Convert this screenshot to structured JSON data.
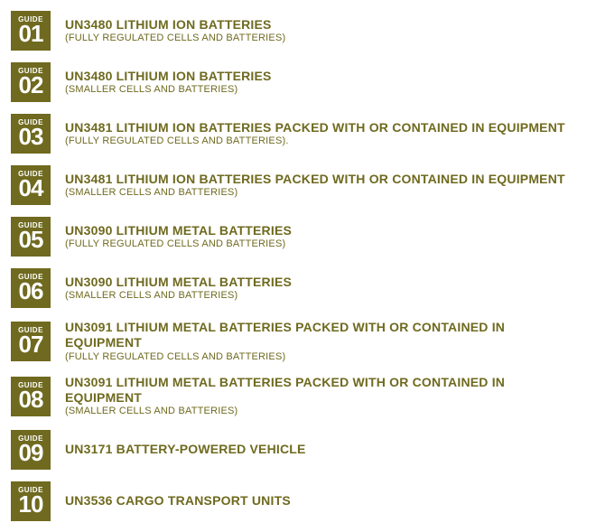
{
  "colors": {
    "badge_bg": "#6f6a1f",
    "badge_text": "#ffffff",
    "text": "#6f6a1f",
    "background": "#ffffff"
  },
  "badge_label": "GUIDE",
  "guides": [
    {
      "num": "01",
      "title": "UN3480 LITHIUM ION BATTERIES",
      "subtitle": "(FULLY REGULATED CELLS AND BATTERIES)"
    },
    {
      "num": "02",
      "title": "UN3480 LITHIUM ION BATTERIES",
      "subtitle": "(SMALLER CELLS AND BATTERIES)"
    },
    {
      "num": "03",
      "title": "UN3481 LITHIUM ION BATTERIES PACKED WITH OR CONTAINED IN EQUIPMENT",
      "subtitle": "(FULLY REGULATED CELLS AND BATTERIES)."
    },
    {
      "num": "04",
      "title": "UN3481 LITHIUM ION BATTERIES PACKED WITH OR CONTAINED IN EQUIPMENT",
      "subtitle": "(SMALLER CELLS AND BATTERIES)"
    },
    {
      "num": "05",
      "title": "UN3090 LITHIUM METAL BATTERIES",
      "subtitle": "(FULLY REGULATED CELLS AND BATTERIES)"
    },
    {
      "num": "06",
      "title": "UN3090 LITHIUM METAL BATTERIES",
      "subtitle": "(SMALLER CELLS AND BATTERIES)"
    },
    {
      "num": "07",
      "title": "UN3091 LITHIUM METAL BATTERIES PACKED WITH OR CONTAINED IN EQUIPMENT",
      "subtitle": "(FULLY REGULATED CELLS AND BATTERIES)"
    },
    {
      "num": "08",
      "title": "UN3091 LITHIUM METAL BATTERIES PACKED WITH OR CONTAINED IN EQUIPMENT",
      "subtitle": "(SMALLER CELLS AND BATTERIES)"
    },
    {
      "num": "09",
      "title": "UN3171 BATTERY-POWERED VEHICLE",
      "subtitle": ""
    },
    {
      "num": "10",
      "title": "UN3536 CARGO TRANSPORT UNITS",
      "subtitle": ""
    }
  ]
}
